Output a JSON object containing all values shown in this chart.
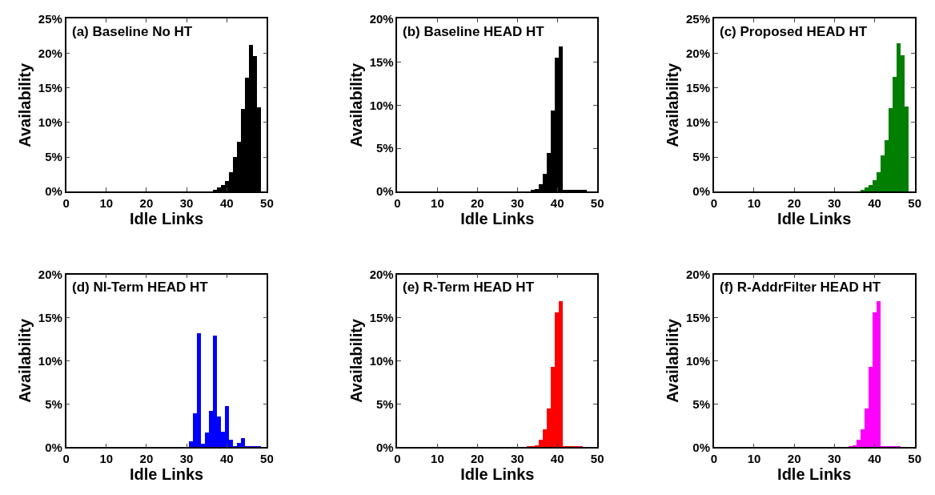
{
  "chart_data": [
    {
      "type": "histogram",
      "title": "(a) Baseline No HT",
      "xlabel": "Idle Links",
      "ylabel": "Availability",
      "color": "#000000",
      "bins": [
        0.5,
        1.5,
        2.5,
        3.5,
        4.5,
        5.5,
        6.5,
        7.5,
        8.5,
        9.5,
        10.5,
        11.5,
        12.5,
        13.5,
        14.5,
        15.5,
        16.5,
        17.5,
        18.5,
        19.5,
        20.5,
        21.5,
        22.5,
        23.5,
        24.5,
        25.5,
        26.5,
        27.5,
        28.5,
        29.5,
        30.5,
        31.5,
        32.5,
        33.5,
        34.5,
        35.5,
        36.5,
        37.5,
        38.5,
        39.5,
        40.5,
        41.5,
        42.5,
        43.5,
        44.5,
        45.5,
        46.5,
        47.5,
        48.5,
        49.5
      ],
      "values": [
        0,
        0,
        0,
        0,
        0,
        0,
        0,
        0,
        0,
        0,
        0,
        0,
        0,
        0,
        0,
        0,
        0,
        0,
        0,
        0,
        0,
        0,
        0,
        0,
        0,
        0,
        0,
        0,
        0,
        0,
        0,
        0,
        0,
        0,
        0,
        0,
        0.2,
        0.5,
        0.9,
        1.5,
        2.8,
        5.0,
        7.2,
        11.9,
        16.4,
        21.2,
        19.6,
        12.1,
        0
      ],
      "xlim": [
        0,
        50
      ],
      "ylim": [
        0,
        25
      ],
      "xticks": [
        0,
        10,
        20,
        30,
        40,
        50
      ],
      "yticks": [
        {
          "value": 0,
          "label": "0%"
        },
        {
          "value": 5,
          "label": "5%"
        },
        {
          "value": 10,
          "label": "10%"
        },
        {
          "value": 15,
          "label": "15%"
        },
        {
          "value": 20,
          "label": "20%"
        },
        {
          "value": 25,
          "label": "25%"
        }
      ]
    },
    {
      "type": "histogram",
      "title": "(b) Baseline HEAD HT",
      "xlabel": "Idle Links",
      "ylabel": "Availability",
      "color": "#000000",
      "bins": [
        0.5,
        1.5,
        2.5,
        3.5,
        4.5,
        5.5,
        6.5,
        7.5,
        8.5,
        9.5,
        10.5,
        11.5,
        12.5,
        13.5,
        14.5,
        15.5,
        16.5,
        17.5,
        18.5,
        19.5,
        20.5,
        21.5,
        22.5,
        23.5,
        24.5,
        25.5,
        26.5,
        27.5,
        28.5,
        29.5,
        30.5,
        31.5,
        32.5,
        33.5,
        34.5,
        35.5,
        36.5,
        37.5,
        38.5,
        39.5,
        40.5,
        41.5,
        42.5,
        43.5,
        44.5,
        45.5,
        46.5,
        47.5,
        48.5,
        49.5
      ],
      "values": [
        0,
        0,
        0,
        0,
        0,
        0,
        0,
        0,
        0,
        0,
        0,
        0,
        0,
        0,
        0,
        0,
        0,
        0,
        0,
        0,
        0,
        0,
        0,
        0,
        0,
        0,
        0,
        0,
        0,
        0,
        0,
        0,
        0,
        0.1,
        0.3,
        0.8,
        2.0,
        4.4,
        9.3,
        15.5,
        16.8,
        0.1,
        0.1,
        0.1,
        0.1,
        0.1,
        0.1,
        0,
        0
      ],
      "xlim": [
        0,
        50
      ],
      "ylim": [
        0,
        20
      ],
      "xticks": [
        0,
        10,
        20,
        30,
        40,
        50
      ],
      "yticks": [
        {
          "value": 0,
          "label": "0%"
        },
        {
          "value": 5,
          "label": "5%"
        },
        {
          "value": 10,
          "label": "10%"
        },
        {
          "value": 15,
          "label": "15%"
        },
        {
          "value": 20,
          "label": "20%"
        }
      ]
    },
    {
      "type": "histogram",
      "title": "(c) Proposed HEAD HT",
      "xlabel": "Idle Links",
      "ylabel": "Availability",
      "color": "#007f00",
      "bins": [
        0.5,
        1.5,
        2.5,
        3.5,
        4.5,
        5.5,
        6.5,
        7.5,
        8.5,
        9.5,
        10.5,
        11.5,
        12.5,
        13.5,
        14.5,
        15.5,
        16.5,
        17.5,
        18.5,
        19.5,
        20.5,
        21.5,
        22.5,
        23.5,
        24.5,
        25.5,
        26.5,
        27.5,
        28.5,
        29.5,
        30.5,
        31.5,
        32.5,
        33.5,
        34.5,
        35.5,
        36.5,
        37.5,
        38.5,
        39.5,
        40.5,
        41.5,
        42.5,
        43.5,
        44.5,
        45.5,
        46.5,
        47.5,
        48.5,
        49.5
      ],
      "values": [
        0,
        0,
        0,
        0,
        0,
        0,
        0,
        0,
        0,
        0,
        0,
        0,
        0,
        0,
        0,
        0,
        0,
        0,
        0,
        0,
        0,
        0,
        0,
        0,
        0,
        0,
        0,
        0,
        0,
        0,
        0,
        0,
        0,
        0,
        0,
        0,
        0.2,
        0.5,
        0.9,
        1.6,
        2.7,
        5.2,
        7.4,
        12.0,
        16.5,
        21.4,
        19.7,
        12.2,
        0
      ],
      "xlim": [
        0,
        50
      ],
      "ylim": [
        0,
        25
      ],
      "xticks": [
        0,
        10,
        20,
        30,
        40,
        50
      ],
      "yticks": [
        {
          "value": 0,
          "label": "0%"
        },
        {
          "value": 5,
          "label": "5%"
        },
        {
          "value": 10,
          "label": "10%"
        },
        {
          "value": 15,
          "label": "15%"
        },
        {
          "value": 20,
          "label": "20%"
        },
        {
          "value": 25,
          "label": "25%"
        }
      ]
    },
    {
      "type": "histogram",
      "title": "(d) NI-Term HEAD HT",
      "xlabel": "Idle Links",
      "ylabel": "Availability",
      "color": "#0000ff",
      "bins": [
        0.5,
        1.5,
        2.5,
        3.5,
        4.5,
        5.5,
        6.5,
        7.5,
        8.5,
        9.5,
        10.5,
        11.5,
        12.5,
        13.5,
        14.5,
        15.5,
        16.5,
        17.5,
        18.5,
        19.5,
        20.5,
        21.5,
        22.5,
        23.5,
        24.5,
        25.5,
        26.5,
        27.5,
        28.5,
        29.5,
        30.5,
        31.5,
        32.5,
        33.5,
        34.5,
        35.5,
        36.5,
        37.5,
        38.5,
        39.5,
        40.5,
        41.5,
        42.5,
        43.5,
        44.5,
        45.5,
        46.5,
        47.5,
        48.5,
        49.5
      ],
      "values": [
        0,
        0,
        0,
        0,
        0,
        0,
        0,
        0,
        0,
        0,
        0,
        0,
        0,
        0,
        0,
        0,
        0,
        0,
        0,
        0,
        0,
        0,
        0,
        0,
        0,
        0,
        0,
        0,
        0,
        0,
        0.7,
        4.0,
        13.2,
        0.4,
        1.7,
        4.2,
        13.0,
        3.6,
        1.8,
        4.8,
        0.9,
        0.2,
        0.5,
        1.1,
        0.2,
        0.2,
        0.1,
        0.1,
        0
      ],
      "xlim": [
        0,
        50
      ],
      "ylim": [
        0,
        20
      ],
      "xticks": [
        0,
        10,
        20,
        30,
        40,
        50
      ],
      "yticks": [
        {
          "value": 0,
          "label": "0%"
        },
        {
          "value": 5,
          "label": "5%"
        },
        {
          "value": 10,
          "label": "10%"
        },
        {
          "value": 15,
          "label": "15%"
        },
        {
          "value": 20,
          "label": "20%"
        }
      ]
    },
    {
      "type": "histogram",
      "title": "(e) R-Term HEAD HT",
      "xlabel": "Idle Links",
      "ylabel": "Availability",
      "color": "#ff0000",
      "bins": [
        0.5,
        1.5,
        2.5,
        3.5,
        4.5,
        5.5,
        6.5,
        7.5,
        8.5,
        9.5,
        10.5,
        11.5,
        12.5,
        13.5,
        14.5,
        15.5,
        16.5,
        17.5,
        18.5,
        19.5,
        20.5,
        21.5,
        22.5,
        23.5,
        24.5,
        25.5,
        26.5,
        27.5,
        28.5,
        29.5,
        30.5,
        31.5,
        32.5,
        33.5,
        34.5,
        35.5,
        36.5,
        37.5,
        38.5,
        39.5,
        40.5,
        41.5,
        42.5,
        43.5,
        44.5,
        45.5,
        46.5,
        47.5,
        48.5,
        49.5
      ],
      "values": [
        0,
        0,
        0,
        0,
        0,
        0,
        0,
        0,
        0,
        0,
        0,
        0,
        0,
        0,
        0,
        0,
        0,
        0,
        0,
        0,
        0,
        0,
        0,
        0,
        0,
        0,
        0,
        0,
        0,
        0,
        0,
        0,
        0.1,
        0.1,
        0.3,
        0.9,
        2.1,
        4.5,
        9.3,
        15.6,
        16.9,
        0.1,
        0.1,
        0.1,
        0.1,
        0.1,
        0,
        0,
        0
      ],
      "xlim": [
        0,
        50
      ],
      "ylim": [
        0,
        20
      ],
      "xticks": [
        0,
        10,
        20,
        30,
        40,
        50
      ],
      "yticks": [
        {
          "value": 0,
          "label": "0%"
        },
        {
          "value": 5,
          "label": "5%"
        },
        {
          "value": 10,
          "label": "10%"
        },
        {
          "value": 15,
          "label": "15%"
        },
        {
          "value": 20,
          "label": "20%"
        }
      ]
    },
    {
      "type": "histogram",
      "title": "(f) R-AddrFilter HEAD HT",
      "xlabel": "Idle Links",
      "ylabel": "Availability",
      "color": "#ff00ff",
      "bins": [
        0.5,
        1.5,
        2.5,
        3.5,
        4.5,
        5.5,
        6.5,
        7.5,
        8.5,
        9.5,
        10.5,
        11.5,
        12.5,
        13.5,
        14.5,
        15.5,
        16.5,
        17.5,
        18.5,
        19.5,
        20.5,
        21.5,
        22.5,
        23.5,
        24.5,
        25.5,
        26.5,
        27.5,
        28.5,
        29.5,
        30.5,
        31.5,
        32.5,
        33.5,
        34.5,
        35.5,
        36.5,
        37.5,
        38.5,
        39.5,
        40.5,
        41.5,
        42.5,
        43.5,
        44.5,
        45.5,
        46.5,
        47.5,
        48.5,
        49.5
      ],
      "values": [
        0,
        0,
        0,
        0,
        0,
        0,
        0,
        0,
        0,
        0,
        0,
        0,
        0,
        0,
        0,
        0,
        0,
        0,
        0,
        0,
        0,
        0,
        0,
        0,
        0,
        0,
        0,
        0,
        0,
        0,
        0,
        0,
        0,
        0.1,
        0.3,
        0.9,
        2.1,
        4.5,
        9.3,
        15.6,
        16.9,
        0.1,
        0.1,
        0.1,
        0.1,
        0.1,
        0,
        0,
        0
      ],
      "xlim": [
        0,
        50
      ],
      "ylim": [
        0,
        20
      ],
      "xticks": [
        0,
        10,
        20,
        30,
        40,
        50
      ],
      "yticks": [
        {
          "value": 0,
          "label": "0%"
        },
        {
          "value": 5,
          "label": "5%"
        },
        {
          "value": 10,
          "label": "10%"
        },
        {
          "value": 15,
          "label": "15%"
        },
        {
          "value": 20,
          "label": "20%"
        }
      ]
    }
  ]
}
